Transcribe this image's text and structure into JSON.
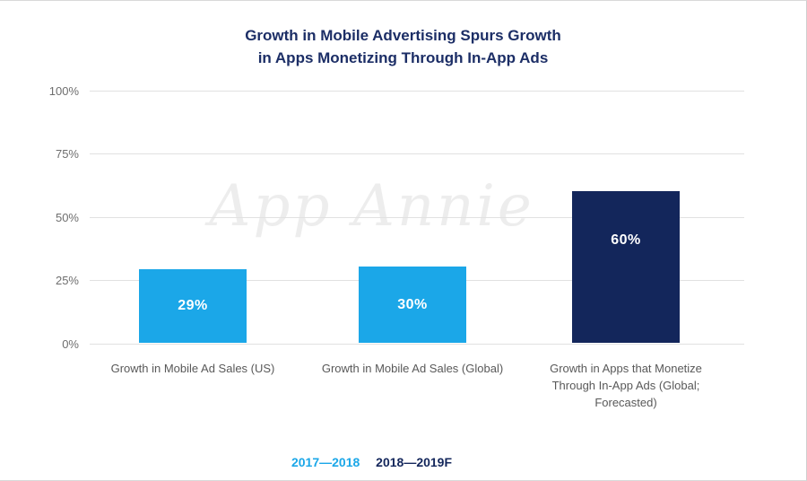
{
  "title": {
    "line1": "Growth in Mobile Advertising Spurs Growth",
    "line2": "in Apps Monetizing Through In-App Ads"
  },
  "watermark": "App Annie",
  "colors": {
    "title": "#1c2e66",
    "light_blue": "#1ba7e8",
    "navy": "#13265b",
    "grid": "#e1e1e1",
    "axis_text": "#6e6e6e"
  },
  "chart_data": {
    "type": "bar",
    "title": "Growth in Mobile Advertising Spurs Growth in Apps Monetizing Through In-App Ads",
    "categories": [
      "Growth in Mobile Ad Sales (US)",
      "Growth in Mobile Ad Sales (Global)",
      "Growth in Apps that Monetize Through In-App Ads (Global; Forecasted)"
    ],
    "values": [
      29,
      30,
      60
    ],
    "bar_labels": [
      "29%",
      "30%",
      "60%"
    ],
    "bar_colors": [
      "#1ba7e8",
      "#1ba7e8",
      "#13265b"
    ],
    "xlabel": "",
    "ylabel": "",
    "ylim": [
      0,
      100
    ],
    "yticks": [
      "100%",
      "75%",
      "50%",
      "25%",
      "0%"
    ],
    "grid": true,
    "legend_position": "bottom",
    "legend": [
      {
        "label": "2017—2018",
        "color": "#1ba7e8"
      },
      {
        "label": "2018—2019F",
        "color": "#13265b"
      }
    ]
  }
}
